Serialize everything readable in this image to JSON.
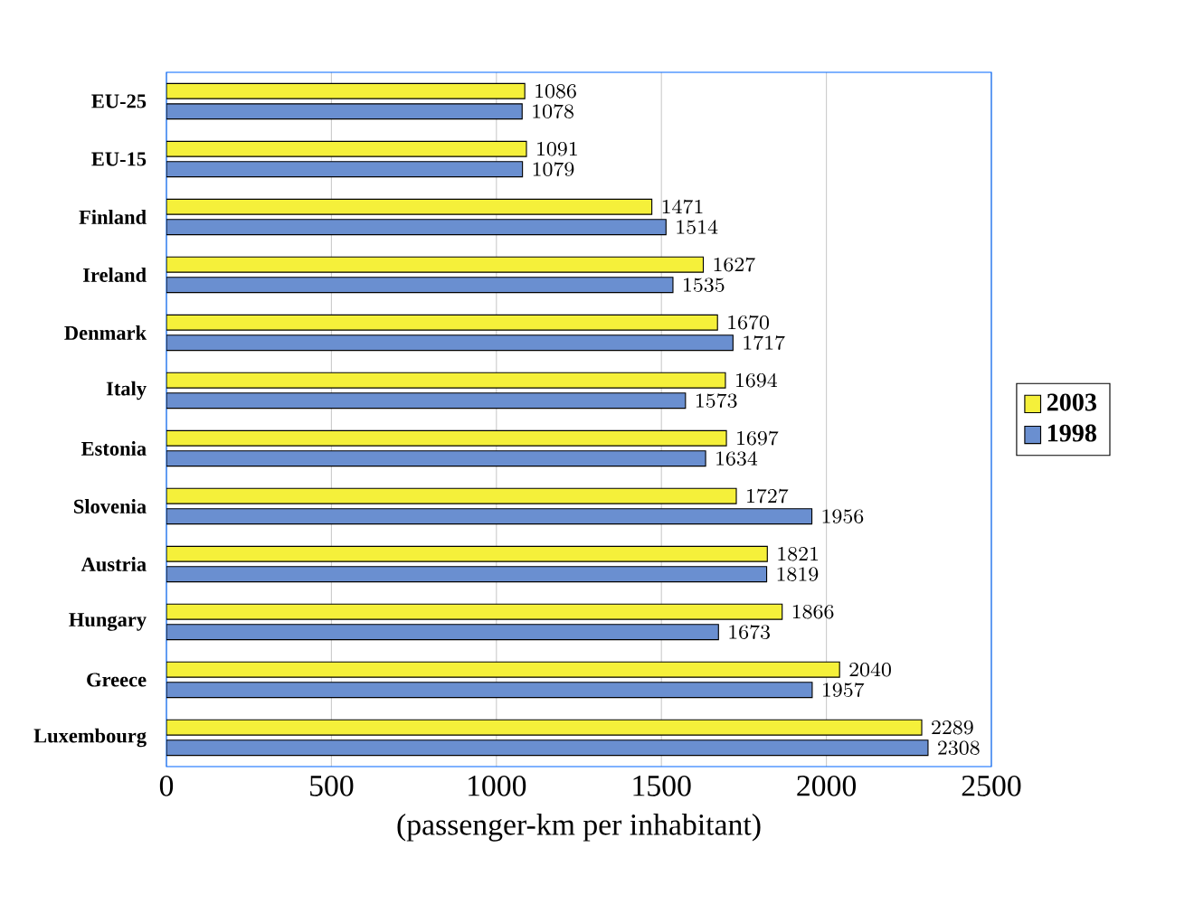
{
  "chart_data": {
    "type": "bar",
    "orientation": "horizontal",
    "xlabel": "(passenger-km per inhabitant)",
    "categories": [
      "EU-25",
      "EU-15",
      "Finland",
      "Ireland",
      "Denmark",
      "Italy",
      "Estonia",
      "Slovenia",
      "Austria",
      "Hungary",
      "Greece",
      "Luxembourg"
    ],
    "series": [
      {
        "name": "2003",
        "color": "#f5f03a",
        "values": [
          1086,
          1091,
          1471,
          1627,
          1670,
          1694,
          1697,
          1727,
          1821,
          1866,
          2040,
          2289
        ]
      },
      {
        "name": "1998",
        "color": "#6a8fd0",
        "values": [
          1078,
          1079,
          1514,
          1535,
          1717,
          1573,
          1634,
          1956,
          1819,
          1673,
          1957,
          2308
        ]
      }
    ],
    "xlim": [
      0,
      2500
    ],
    "xticks": [
      0,
      500,
      1000,
      1500,
      2000,
      2500
    ],
    "grid": "x",
    "legend": "right",
    "data_labels": true
  }
}
